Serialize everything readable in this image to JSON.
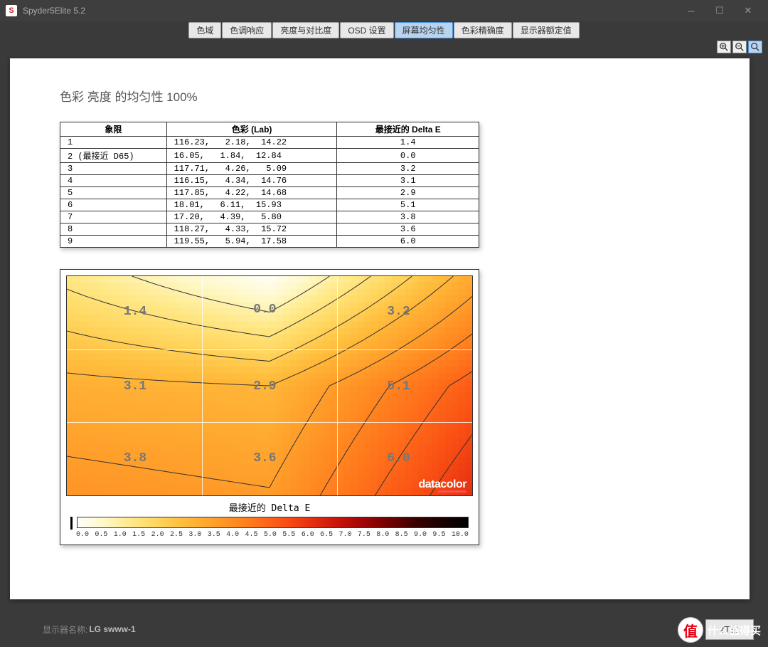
{
  "window": {
    "title": "Spyder5Elite 5.2",
    "icon_letter": "S"
  },
  "tabs": [
    {
      "label": "色域",
      "active": false
    },
    {
      "label": "色调响应",
      "active": false
    },
    {
      "label": "亮度与对比度",
      "active": false
    },
    {
      "label": "OSD 设置",
      "active": false
    },
    {
      "label": "屏幕均匀性",
      "active": true
    },
    {
      "label": "色彩精确度",
      "active": false
    },
    {
      "label": "显示器额定值",
      "active": false
    }
  ],
  "page": {
    "title": "色彩 亮度 的均匀性 100%",
    "table": {
      "headers": [
        "象限",
        "色彩 (Lab)",
        "最接近的 Delta E"
      ],
      "rows": [
        {
          "q": "1",
          "lab": "116.23,   2.18,  14.22",
          "de": "1.4"
        },
        {
          "q": "2 (最接近 D65)",
          "lab": "16.05,   1.84,  12.84",
          "de": "0.0"
        },
        {
          "q": "3",
          "lab": "117.71,   4.26,   5.09",
          "de": "3.2"
        },
        {
          "q": "4",
          "lab": "116.15,   4.34,  14.76",
          "de": "3.1"
        },
        {
          "q": "5",
          "lab": "117.85,   4.22,  14.68",
          "de": "2.9"
        },
        {
          "q": "6",
          "lab": "18.01,   6.11,  15.93",
          "de": "5.1"
        },
        {
          "q": "7",
          "lab": "17.20,   4.39,   5.80",
          "de": "3.8"
        },
        {
          "q": "8",
          "lab": "118.27,   4.33,  15.72",
          "de": "3.6"
        },
        {
          "q": "9",
          "lab": "119.55,   5.94,  17.58",
          "de": "6.0"
        }
      ]
    },
    "heatmap": {
      "type": "heatmap",
      "grid_values": [
        [
          1.4,
          0.0,
          3.2
        ],
        [
          3.1,
          2.9,
          5.1
        ],
        [
          3.8,
          3.6,
          6.0
        ]
      ],
      "label_positions": [
        {
          "text": "1.4",
          "left_pct": 14,
          "top_pct": 13
        },
        {
          "text": "0.0",
          "left_pct": 46,
          "top_pct": 12
        },
        {
          "text": "3.2",
          "left_pct": 79,
          "top_pct": 13
        },
        {
          "text": "3.1",
          "left_pct": 14,
          "top_pct": 47
        },
        {
          "text": "2.9",
          "left_pct": 46,
          "top_pct": 47
        },
        {
          "text": "5.1",
          "left_pct": 79,
          "top_pct": 47
        },
        {
          "text": "3.8",
          "left_pct": 14,
          "top_pct": 80
        },
        {
          "text": "3.6",
          "left_pct": 46,
          "top_pct": 80
        },
        {
          "text": "6.0",
          "left_pct": 79,
          "top_pct": 80
        }
      ],
      "grid_v_positions_pct": [
        33.3,
        66.6
      ],
      "grid_h_positions_pct": [
        33.3,
        66.6
      ],
      "logo_text": "datacolor",
      "contour_color": "#333333",
      "contour_count": 10
    },
    "legend": {
      "title": "最接近的 Delta E",
      "min": 0.0,
      "max": 10.0,
      "step": 0.5,
      "ticks": [
        "0.0",
        "0.5",
        "1.0",
        "1.5",
        "2.0",
        "2.5",
        "3.0",
        "3.5",
        "4.0",
        "4.5",
        "5.0",
        "5.5",
        "6.0",
        "6.5",
        "7.0",
        "7.5",
        "8.0",
        "8.5",
        "9.0",
        "9.5",
        "10.0"
      ],
      "gradient_colors": [
        "#fffef8",
        "#fff8c8",
        "#ffe98a",
        "#ffd760",
        "#ffbe3e",
        "#ffa62e",
        "#ff8c22",
        "#ff6f1a",
        "#f94f14",
        "#e62e10",
        "#c8140a",
        "#a00404",
        "#700000",
        "#3a0000",
        "#1a0000",
        "#000000"
      ]
    }
  },
  "footer": {
    "label": "显示器名称: ",
    "value": "LG swww-1",
    "print_btn": "打印"
  },
  "watermark": {
    "circle": "值",
    "text": "什么值得买"
  }
}
